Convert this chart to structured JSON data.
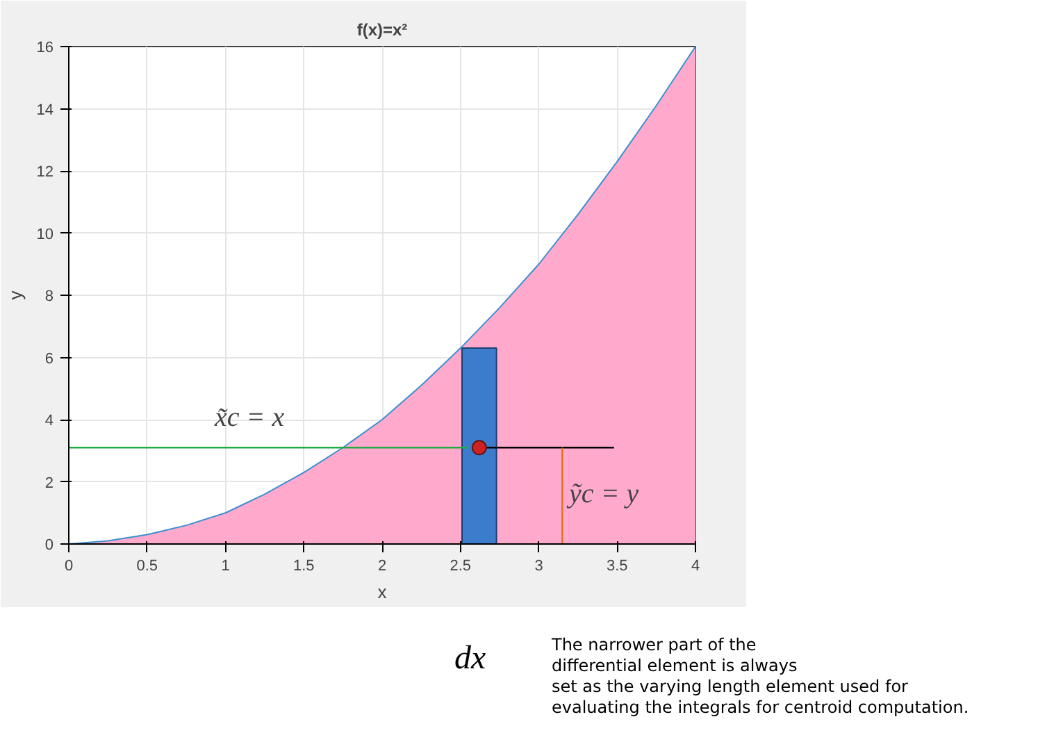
{
  "chart_data": {
    "type": "area",
    "title": "f(x)=x²",
    "xlabel": "x",
    "ylabel": "y",
    "xlim": [
      0,
      4
    ],
    "ylim": [
      0,
      16
    ],
    "xticks": [
      0,
      0.5,
      1,
      1.5,
      2,
      2.5,
      3,
      3.5,
      4
    ],
    "yticks": [
      0,
      2,
      4,
      6,
      8,
      10,
      12,
      14,
      16
    ],
    "grid": true,
    "series": [
      {
        "color": "#ffaacc",
        "x": [
          0,
          0.25,
          0.5,
          0.75,
          1,
          1.25,
          1.5,
          1.75,
          2,
          2.25,
          2.5,
          2.75,
          3,
          3.25,
          3.5,
          3.75,
          4
        ],
        "values": [
          0,
          0.1,
          0.3,
          0.6,
          1,
          1.6,
          2.3,
          3.1,
          4,
          5.1,
          6.3,
          7.6,
          9,
          10.6,
          12.3,
          14.1,
          16
        ]
      },
      {
        "type": "area",
        "color": "#3c7ccc",
        "x": [
          2.51,
          2.73
        ],
        "values": [
          6.3,
          6.3
        ]
      },
      {
        "type": "line",
        "color": "#22aa44",
        "x": [
          2.55,
          0
        ],
        "values": [
          3.1,
          3.1
        ]
      },
      {
        "type": "line",
        "color": "#000000",
        "x": [
          2.62,
          3.48
        ],
        "values": [
          3.1,
          3.1
        ]
      },
      {
        "type": "line",
        "color": "#e07020",
        "x": [
          3.15,
          3.15
        ],
        "values": [
          0,
          3.1
        ]
      },
      {
        "type": "scatter",
        "color": "#cc2222",
        "x": [
          2.62
        ],
        "values": [
          3.1
        ]
      }
    ],
    "annotations": [
      "x̃c = x",
      "ỹc = y",
      "dx",
      "The narrower part of the\ndifferential element is always\nset as the varying length element used for\nevaluating the integrals for centroid computation."
    ]
  }
}
